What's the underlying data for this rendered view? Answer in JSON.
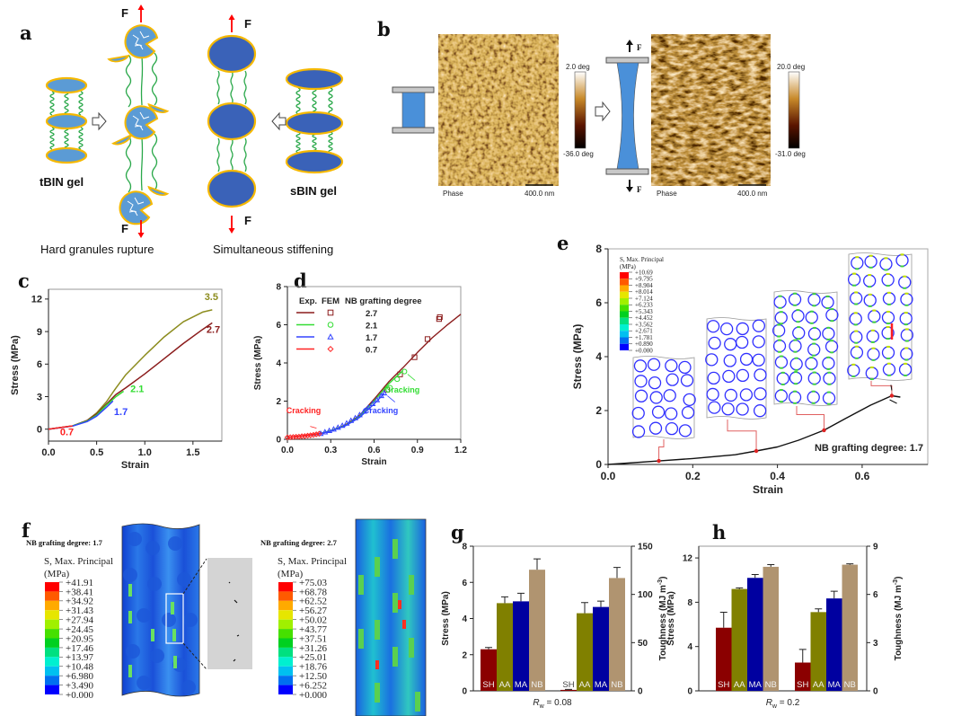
{
  "panels": {
    "a": {
      "label": "a",
      "tbin": "tBIN gel",
      "sbin": "sBIN gel",
      "force": "F",
      "caption_left": "Hard granules rupture",
      "caption_right": "Simultaneous stiffening"
    },
    "b": {
      "label": "b",
      "force": "F",
      "images": [
        {
          "mode": "Phase",
          "scale_bar": "400.0 nm",
          "colorbar_max": "2.0 deg",
          "colorbar_min": "-36.0 deg"
        },
        {
          "mode": "Phase",
          "scale_bar": "400.0 nm",
          "colorbar_max": "20.0 deg",
          "colorbar_min": "-31.0 deg"
        }
      ]
    },
    "c": {
      "label": "c"
    },
    "d": {
      "label": "d"
    },
    "e": {
      "label": "e"
    },
    "f": {
      "label": "f",
      "left": {
        "title": "NB grafting degree: 1.7",
        "legend_title": "S, Max. Principal",
        "legend_unit": "(MPa)",
        "values": [
          "+41.91",
          "+38.41",
          "+34.92",
          "+31.43",
          "+27.94",
          "+24.45",
          "+20.95",
          "+17.46",
          "+13.97",
          "+10.48",
          "+6.980",
          "+3.490",
          "+0.000"
        ]
      },
      "right": {
        "title": "NB grafting degree: 2.7",
        "legend_title": "S, Max. Principal",
        "legend_unit": "(MPa)",
        "values": [
          "+75.03",
          "+68.78",
          "+62.52",
          "+56.27",
          "+50.02",
          "+43.77",
          "+37.51",
          "+31.26",
          "+25.01",
          "+18.76",
          "+12.50",
          "+6.252",
          "+0.000"
        ]
      }
    },
    "g": {
      "label": "g"
    },
    "h": {
      "label": "h"
    }
  },
  "colors": {
    "stress_scale": [
      "#ff0000",
      "#ff5a00",
      "#ffaa00",
      "#e6e600",
      "#a0f000",
      "#46e000",
      "#00d020",
      "#00e080",
      "#00f0d0",
      "#00c0f0",
      "#0070f0",
      "#0000ff"
    ],
    "granule_tbin": "#5b9bd5",
    "granule_sbin": "#3a62b8",
    "granule_shell": "#f5b800",
    "chain": "#2aa84a",
    "force_arrow": "#ff0000"
  },
  "chart_data": [
    {
      "id": "c",
      "type": "line",
      "xlabel": "Strain",
      "ylabel": "Stress (MPa)",
      "xlim": [
        0,
        1.8
      ],
      "ylim": [
        -1.1,
        12.9
      ],
      "xticks": [
        "0.0",
        "0.5",
        "1.0",
        "1.5"
      ],
      "yticks": [
        "0",
        "3",
        "6",
        "9",
        "12"
      ],
      "series": [
        {
          "name": "3.5",
          "color": "#8c8c1e",
          "x": [
            0,
            0.25,
            0.4,
            0.5,
            0.6,
            0.7,
            0.8,
            1.0,
            1.2,
            1.4,
            1.6,
            1.7
          ],
          "y": [
            0,
            0.3,
            0.8,
            1.5,
            2.5,
            3.8,
            5.0,
            6.8,
            8.5,
            9.9,
            10.8,
            11.0
          ]
        },
        {
          "name": "2.7",
          "color": "#8b1c1c",
          "x": [
            0,
            0.25,
            0.4,
            0.5,
            0.6,
            0.7,
            0.8,
            1.0,
            1.2,
            1.4,
            1.6,
            1.7
          ],
          "y": [
            0,
            0.3,
            0.8,
            1.4,
            2.3,
            3.2,
            3.8,
            5.1,
            6.5,
            7.9,
            9.2,
            9.8
          ]
        },
        {
          "name": "2.1",
          "color": "#33dd33",
          "x": [
            0,
            0.25,
            0.4,
            0.5,
            0.6,
            0.7,
            0.78
          ],
          "y": [
            0,
            0.3,
            0.75,
            1.3,
            2.2,
            3.0,
            3.5
          ]
        },
        {
          "name": "1.7",
          "color": "#3344ff",
          "x": [
            0,
            0.25,
            0.4,
            0.5,
            0.6,
            0.67
          ],
          "y": [
            0,
            0.28,
            0.7,
            1.2,
            2.0,
            2.6
          ]
        },
        {
          "name": "0.7",
          "color": "#ff2222",
          "x": [
            0,
            0.1,
            0.2,
            0.25
          ],
          "y": [
            0,
            0.12,
            0.24,
            0.3
          ]
        }
      ]
    },
    {
      "id": "d",
      "type": "line+scatter",
      "xlabel": "Strain",
      "ylabel": "Stress (MPa)",
      "xlim": [
        0,
        1.2
      ],
      "ylim": [
        0,
        8
      ],
      "xticks": [
        "0.0",
        "0.3",
        "0.6",
        "0.9",
        "1.2"
      ],
      "yticks": [
        "0",
        "2",
        "4",
        "6",
        "8"
      ],
      "legend": {
        "headers": [
          "Exp.",
          "FEM",
          "NB grafting degree"
        ],
        "placement": "top-left"
      },
      "series": [
        {
          "name": "2.7",
          "color": "#8b1c1c",
          "marker": "square",
          "exp": {
            "x": [
              0,
              0.2,
              0.3,
              0.4,
              0.5,
              0.6,
              0.7,
              0.8,
              0.9,
              1.0,
              1.1,
              1.2
            ],
            "y": [
              0.1,
              0.25,
              0.45,
              0.75,
              1.25,
              2.1,
              3.0,
              3.75,
              4.55,
              5.3,
              5.95,
              6.55
            ]
          },
          "fem": {
            "x": [
              0.69,
              0.78,
              0.88,
              0.97,
              1.05,
              1.055
            ],
            "y": [
              2.6,
              3.4,
              4.3,
              5.25,
              6.3,
              6.4
            ]
          }
        },
        {
          "name": "2.1",
          "color": "#33dd33",
          "marker": "circle",
          "exp": {
            "x": [
              0,
              0.2,
              0.3,
              0.4,
              0.5,
              0.6,
              0.7,
              0.8
            ],
            "y": [
              0.1,
              0.25,
              0.45,
              0.72,
              1.2,
              2.0,
              2.9,
              3.6
            ]
          },
          "fem": {
            "x": [
              0.71,
              0.76,
              0.81
            ],
            "y": [
              2.7,
              3.15,
              3.55
            ]
          }
        },
        {
          "name": "1.7",
          "color": "#3344ff",
          "marker": "triangle",
          "exp": {
            "x": [
              0,
              0.2,
              0.3,
              0.4,
              0.5,
              0.6,
              0.67
            ],
            "y": [
              0.1,
              0.25,
              0.43,
              0.7,
              1.15,
              1.85,
              2.4
            ]
          },
          "fem": {
            "x": [
              0.23,
              0.26,
              0.29,
              0.32,
              0.35,
              0.38,
              0.41,
              0.44,
              0.47,
              0.5,
              0.53,
              0.56,
              0.59,
              0.62,
              0.65,
              0.67
            ],
            "y": [
              0.3,
              0.38,
              0.45,
              0.53,
              0.62,
              0.72,
              0.84,
              0.98,
              1.12,
              1.28,
              1.46,
              1.66,
              1.86,
              2.06,
              2.28,
              2.42
            ]
          }
        },
        {
          "name": "0.7",
          "color": "#ff2222",
          "marker": "diamond",
          "exp": {
            "x": [
              0,
              0.1,
              0.22
            ],
            "y": [
              0.1,
              0.18,
              0.3
            ]
          },
          "fem": {
            "x": [
              0.0,
              0.02,
              0.04,
              0.06,
              0.08,
              0.1,
              0.12,
              0.14,
              0.16,
              0.18,
              0.2,
              0.22
            ],
            "y": [
              0.1,
              0.11,
              0.12,
              0.13,
              0.14,
              0.16,
              0.17,
              0.19,
              0.21,
              0.23,
              0.26,
              0.29
            ]
          }
        }
      ],
      "annotations": [
        {
          "text": "Cracking",
          "color": "#ff2222",
          "x": 0.22,
          "y": 0.3
        },
        {
          "text": "Cracking",
          "color": "#3344ff",
          "x": 0.67,
          "y": 2.42
        },
        {
          "text": "Cracking",
          "color": "#33dd33",
          "x": 0.81,
          "y": 3.55
        }
      ]
    },
    {
      "id": "e",
      "type": "line",
      "xlabel": "Strain",
      "ylabel": "Stress (MPa)",
      "xlim": [
        0,
        0.755
      ],
      "ylim": [
        0,
        8
      ],
      "xticks": [
        "0.0",
        "0.2",
        "0.4",
        "0.6"
      ],
      "yticks": [
        "0",
        "2",
        "4",
        "6",
        "8"
      ],
      "annotation": "NB grafting degree: 1.7",
      "series": [
        {
          "color": "#111111",
          "x": [
            0,
            0.12,
            0.2,
            0.3,
            0.35,
            0.4,
            0.45,
            0.51,
            0.56,
            0.62,
            0.67,
            0.69
          ],
          "y": [
            0,
            0.13,
            0.22,
            0.36,
            0.5,
            0.65,
            0.9,
            1.27,
            1.7,
            2.2,
            2.55,
            2.5
          ]
        }
      ],
      "markers": {
        "x": [
          0.12,
          0.35,
          0.51,
          0.67
        ],
        "y": [
          0.13,
          0.5,
          1.27,
          2.55
        ],
        "color": "#dd2222"
      },
      "inset_legend": {
        "title": "S, Max. Principal",
        "unit": "(MPa)",
        "values": [
          "+10.69",
          "+9.795",
          "+8.904",
          "+8.014",
          "+7.124",
          "+6.233",
          "+5.343",
          "+4.452",
          "+3.562",
          "+2.671",
          "+1.781",
          "+0.890",
          "+0.000"
        ]
      }
    },
    {
      "id": "g",
      "type": "bar",
      "xlabel": "R_w = 0.08",
      "xlabel_main": "R",
      "xlabel_sub": "w",
      "xlabel_rest": " = 0.08",
      "ylabel": "Stress (MPa)",
      "ylabel_right": "Toughness (MJ m",
      "ylabel_right_sup": "-3",
      "ylabel_right_end": ")",
      "ylim": [
        0,
        8
      ],
      "ylim_right": [
        0,
        150
      ],
      "yticks": [
        "0",
        "2",
        "4",
        "6",
        "8"
      ],
      "yticks_right": [
        "0",
        "50",
        "100",
        "150"
      ],
      "categories": [
        "SH",
        "AA",
        "MA",
        "NB"
      ],
      "colors": [
        "#8b0000",
        "#808000",
        "#0000a0",
        "#b09470"
      ],
      "groups": [
        {
          "axis": "left",
          "values": [
            2.3,
            4.85,
            4.95,
            6.7
          ],
          "errors": [
            0.1,
            0.35,
            0.45,
            0.6
          ]
        },
        {
          "axis": "right",
          "values": [
            1.0,
            80.5,
            87.0,
            117.0
          ],
          "errors": [
            0.5,
            11.0,
            6.0,
            11.0
          ]
        }
      ]
    },
    {
      "id": "h",
      "type": "bar",
      "xlabel": "R_w = 0.2",
      "xlabel_main": "R",
      "xlabel_sub": "w",
      "xlabel_rest": " = 0.2",
      "ylabel": "Stress (MPa)",
      "ylabel_right": "Toughness (MJ m",
      "ylabel_right_sup": "-3",
      "ylabel_right_end": ")",
      "ylim": [
        0,
        13.06
      ],
      "ylim_right": [
        0,
        9
      ],
      "yticks": [
        "0",
        "4",
        "8",
        "12"
      ],
      "yticks_right": [
        "0",
        "3",
        "6",
        "9"
      ],
      "categories": [
        "SH",
        "AA",
        "MA",
        "NB"
      ],
      "colors": [
        "#8b0000",
        "#808000",
        "#0000a0",
        "#b09470"
      ],
      "groups": [
        {
          "axis": "left",
          "values": [
            5.7,
            9.2,
            10.2,
            11.2
          ],
          "errors": [
            1.4,
            0.1,
            0.3,
            0.2
          ]
        },
        {
          "axis": "right",
          "values": [
            1.76,
            4.9,
            5.75,
            7.85
          ],
          "errors": [
            0.82,
            0.2,
            0.45,
            0.05
          ]
        }
      ]
    }
  ]
}
